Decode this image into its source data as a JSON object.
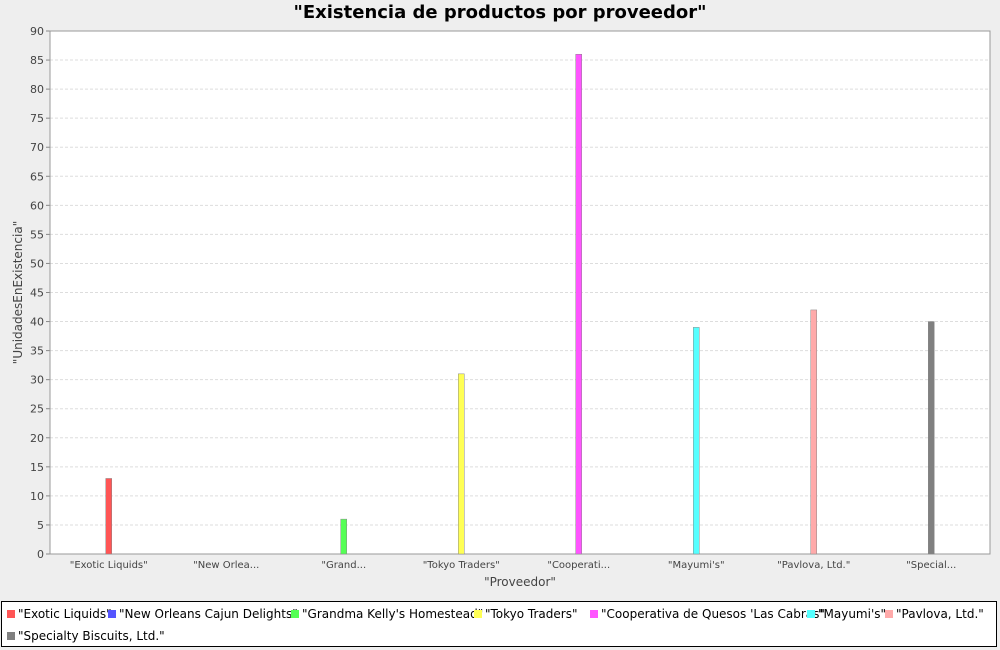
{
  "chart_data": {
    "type": "bar",
    "title": "\"Existencia de productos por proveedor\"",
    "xlabel": "\"Proveedor\"",
    "ylabel": "\"UnidadesEnExistencia\"",
    "ylim": [
      0,
      90
    ],
    "yticks": [
      0,
      5,
      10,
      15,
      20,
      25,
      30,
      35,
      40,
      45,
      50,
      55,
      60,
      65,
      70,
      75,
      80,
      85,
      90
    ],
    "grid": true,
    "legend_position": "bottom",
    "categories": [
      "\"Exotic Liquids\"",
      "\"New Orlea...",
      "\"Grand...",
      "\"Tokyo Traders\"",
      "\"Cooperati...",
      "\"Mayumi's\"",
      "\"Pavlova, Ltd.\"",
      "\"Special..."
    ],
    "series": [
      {
        "name": "\"Exotic Liquids\"",
        "color": "#ff5555",
        "values": [
          13,
          null,
          null,
          null,
          null,
          null,
          null,
          null
        ]
      },
      {
        "name": "\"New Orleans Cajun Delights\"",
        "color": "#5555ff",
        "values": [
          null,
          0,
          null,
          null,
          null,
          null,
          null,
          null
        ]
      },
      {
        "name": "\"Grandma Kelly's Homestead\"",
        "color": "#55ff55",
        "values": [
          null,
          null,
          6,
          null,
          null,
          null,
          null,
          null
        ]
      },
      {
        "name": "\"Tokyo Traders\"",
        "color": "#ffff55",
        "values": [
          null,
          null,
          null,
          31,
          null,
          null,
          null,
          null
        ]
      },
      {
        "name": "\"Cooperativa de Quesos 'Las Cabras\"",
        "color": "#ff55ff",
        "values": [
          null,
          null,
          null,
          null,
          86,
          null,
          null,
          null
        ]
      },
      {
        "name": "\"Mayumi's\"",
        "color": "#55ffff",
        "values": [
          null,
          null,
          null,
          null,
          null,
          39,
          null,
          null
        ]
      },
      {
        "name": "\"Pavlova, Ltd.\"",
        "color": "#ffaaaa",
        "values": [
          null,
          null,
          null,
          null,
          null,
          null,
          42,
          null
        ]
      },
      {
        "name": "\"Specialty Biscuits, Ltd.\"",
        "color": "#808080",
        "values": [
          null,
          null,
          null,
          null,
          null,
          null,
          null,
          40
        ]
      }
    ]
  }
}
